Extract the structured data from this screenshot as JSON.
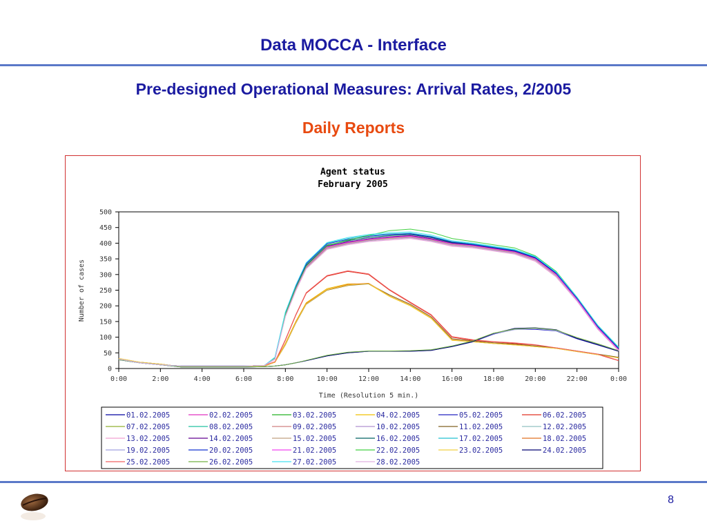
{
  "slide": {
    "title": "Data MOCCA - Interface",
    "subtitle": "Pre-designed Operational Measures: Arrival Rates, 2/2005",
    "section": "Daily Reports",
    "page_number": "8",
    "logo_icon": "coffee-bean-icon",
    "colors": {
      "title": "#1a1aa0",
      "section": "#e84a10",
      "rule": "#5a78c8",
      "frame": "#d03030"
    }
  },
  "chart_data": {
    "type": "line",
    "title": "Agent status",
    "subtitle": "February 2005",
    "xlabel": "Time (Resolution 5 min.)",
    "ylabel": "Number of cases",
    "xlim": [
      0,
      24
    ],
    "ylim": [
      0,
      500
    ],
    "x_ticks": [
      "0:00",
      "2:00",
      "4:00",
      "6:00",
      "8:00",
      "10:00",
      "12:00",
      "14:00",
      "16:00",
      "18:00",
      "20:00",
      "22:00",
      "0:00"
    ],
    "y_ticks": [
      "0",
      "50",
      "100",
      "150",
      "200",
      "250",
      "300",
      "350",
      "400",
      "450",
      "500"
    ],
    "grid": false,
    "legend_position": "bottom",
    "x": [
      "0:00",
      "1:00",
      "2:00",
      "3:00",
      "4:00",
      "5:00",
      "6:00",
      "7:00",
      "7:30",
      "8:00",
      "8:30",
      "9:00",
      "10:00",
      "11:00",
      "12:00",
      "13:00",
      "14:00",
      "15:00",
      "16:00",
      "17:00",
      "18:00",
      "19:00",
      "20:00",
      "21:00",
      "22:00",
      "23:00",
      "0:00"
    ],
    "series": [
      {
        "name": "01.02.2005",
        "color": "#0000a0",
        "values": [
          28,
          18,
          12,
          8,
          8,
          8,
          8,
          10,
          30,
          170,
          250,
          320,
          385,
          400,
          410,
          415,
          420,
          410,
          395,
          390,
          380,
          370,
          350,
          300,
          220,
          130,
          60
        ]
      },
      {
        "name": "02.02.2005",
        "color": "#e030c0",
        "values": [
          30,
          18,
          12,
          8,
          8,
          8,
          8,
          10,
          35,
          175,
          260,
          330,
          390,
          405,
          412,
          420,
          425,
          415,
          400,
          392,
          382,
          372,
          352,
          302,
          222,
          132,
          62
        ]
      },
      {
        "name": "03.02.2005",
        "color": "#20b020",
        "values": [
          30,
          18,
          12,
          8,
          8,
          8,
          8,
          10,
          32,
          170,
          255,
          325,
          388,
          402,
          412,
          418,
          422,
          412,
          398,
          392,
          382,
          372,
          350,
          300,
          220,
          130,
          60
        ]
      },
      {
        "name": "04.02.2005",
        "color": "#f0c000",
        "values": [
          32,
          20,
          14,
          6,
          6,
          6,
          6,
          8,
          20,
          80,
          150,
          210,
          255,
          270,
          270,
          230,
          200,
          160,
          90,
          85,
          80,
          75,
          70,
          65,
          55,
          45,
          35
        ]
      },
      {
        "name": "05.02.2005",
        "color": "#2020c0",
        "values": [
          28,
          18,
          12,
          5,
          5,
          5,
          5,
          6,
          8,
          12,
          18,
          25,
          40,
          50,
          55,
          55,
          55,
          58,
          70,
          85,
          110,
          125,
          125,
          120,
          95,
          75,
          55
        ]
      },
      {
        "name": "06.02.2005",
        "color": "#e03020",
        "values": [
          30,
          18,
          12,
          8,
          8,
          8,
          8,
          10,
          20,
          90,
          170,
          240,
          295,
          310,
          300,
          250,
          210,
          170,
          100,
          90,
          85,
          80,
          75,
          65,
          55,
          45,
          25
        ]
      },
      {
        "name": "07.02.2005",
        "color": "#90b030",
        "values": [
          30,
          18,
          12,
          8,
          8,
          8,
          8,
          10,
          32,
          168,
          252,
          322,
          382,
          398,
          408,
          415,
          420,
          412,
          395,
          388,
          378,
          368,
          345,
          295,
          218,
          128,
          58
        ]
      },
      {
        "name": "08.02.2005",
        "color": "#20c0a0",
        "values": [
          30,
          18,
          12,
          8,
          8,
          8,
          8,
          10,
          34,
          172,
          258,
          328,
          392,
          408,
          418,
          425,
          428,
          418,
          402,
          395,
          385,
          375,
          355,
          305,
          225,
          135,
          65
        ]
      },
      {
        "name": "09.02.2005",
        "color": "#d08080",
        "values": [
          30,
          18,
          12,
          8,
          8,
          8,
          8,
          10,
          33,
          171,
          254,
          324,
          386,
          400,
          410,
          416,
          420,
          410,
          396,
          390,
          380,
          370,
          348,
          298,
          220,
          130,
          60
        ]
      },
      {
        "name": "10.02.2005",
        "color": "#b090d0",
        "values": [
          30,
          18,
          12,
          8,
          8,
          8,
          8,
          10,
          31,
          169,
          252,
          322,
          384,
          398,
          408,
          414,
          418,
          408,
          394,
          388,
          378,
          368,
          346,
          296,
          218,
          128,
          58
        ]
      },
      {
        "name": "11.02.2005",
        "color": "#806020",
        "values": [
          30,
          20,
          14,
          6,
          6,
          6,
          6,
          8,
          20,
          75,
          145,
          205,
          250,
          265,
          270,
          235,
          205,
          165,
          95,
          88,
          82,
          78,
          72,
          66,
          56,
          46,
          36
        ]
      },
      {
        "name": "12.02.2005",
        "color": "#90c0c0",
        "values": [
          28,
          18,
          12,
          5,
          5,
          5,
          5,
          6,
          8,
          12,
          18,
          26,
          42,
          52,
          56,
          56,
          56,
          60,
          72,
          88,
          112,
          125,
          128,
          122,
          98,
          78,
          56
        ]
      },
      {
        "name": "13.02.2005",
        "color": "#f0a0d0",
        "values": [
          30,
          18,
          12,
          8,
          8,
          8,
          8,
          10,
          30,
          165,
          248,
          318,
          380,
          395,
          405,
          410,
          415,
          405,
          390,
          385,
          375,
          365,
          342,
          292,
          215,
          125,
          56
        ]
      },
      {
        "name": "14.02.2005",
        "color": "#600090",
        "values": [
          30,
          18,
          12,
          8,
          8,
          8,
          8,
          10,
          33,
          172,
          256,
          326,
          390,
          404,
          414,
          420,
          424,
          414,
          400,
          394,
          384,
          374,
          352,
          302,
          222,
          132,
          62
        ]
      },
      {
        "name": "15.02.2005",
        "color": "#c0a080",
        "values": [
          30,
          18,
          12,
          8,
          8,
          8,
          8,
          10,
          32,
          170,
          253,
          323,
          385,
          400,
          410,
          415,
          420,
          410,
          396,
          390,
          380,
          370,
          348,
          298,
          220,
          130,
          60
        ]
      },
      {
        "name": "16.02.2005",
        "color": "#006060",
        "values": [
          30,
          18,
          12,
          8,
          8,
          8,
          8,
          10,
          34,
          174,
          258,
          330,
          394,
          408,
          418,
          424,
          428,
          418,
          402,
          396,
          386,
          376,
          354,
          304,
          224,
          134,
          64
        ]
      },
      {
        "name": "17.02.2005",
        "color": "#20c0d0",
        "values": [
          30,
          18,
          12,
          8,
          8,
          8,
          8,
          10,
          36,
          178,
          264,
          336,
          400,
          415,
          425,
          430,
          432,
          422,
          405,
          398,
          388,
          378,
          356,
          306,
          226,
          136,
          66
        ]
      },
      {
        "name": "18.02.2005",
        "color": "#e07020",
        "values": [
          32,
          20,
          14,
          6,
          6,
          6,
          6,
          8,
          20,
          78,
          148,
          208,
          252,
          268,
          272,
          232,
          202,
          162,
          92,
          86,
          80,
          76,
          70,
          64,
          54,
          44,
          34
        ]
      },
      {
        "name": "19.02.2005",
        "color": "#a0a0e0",
        "values": [
          28,
          18,
          12,
          5,
          5,
          5,
          5,
          6,
          8,
          12,
          18,
          25,
          41,
          51,
          55,
          55,
          55,
          59,
          71,
          86,
          111,
          124,
          127,
          121,
          97,
          77,
          55
        ]
      },
      {
        "name": "20.02.2005",
        "color": "#1030d0",
        "values": [
          30,
          18,
          12,
          8,
          8,
          8,
          8,
          10,
          35,
          176,
          262,
          334,
          398,
          412,
          422,
          428,
          430,
          420,
          404,
          396,
          386,
          376,
          354,
          304,
          224,
          134,
          64
        ]
      },
      {
        "name": "21.02.2005",
        "color": "#f040f0",
        "values": [
          30,
          18,
          12,
          8,
          8,
          8,
          8,
          10,
          33,
          171,
          255,
          325,
          388,
          402,
          412,
          418,
          422,
          412,
          398,
          392,
          382,
          372,
          350,
          300,
          220,
          130,
          60
        ]
      },
      {
        "name": "22.02.2005",
        "color": "#40d040",
        "values": [
          30,
          18,
          12,
          8,
          8,
          8,
          8,
          10,
          34,
          173,
          257,
          327,
          392,
          410,
          425,
          440,
          445,
          435,
          415,
          405,
          395,
          385,
          360,
          310,
          228,
          138,
          68
        ]
      },
      {
        "name": "23.02.2005",
        "color": "#f0d040",
        "values": [
          32,
          20,
          14,
          6,
          6,
          6,
          6,
          8,
          20,
          76,
          146,
          206,
          251,
          266,
          271,
          231,
          201,
          161,
          91,
          85,
          80,
          75,
          70,
          64,
          54,
          44,
          34
        ]
      },
      {
        "name": "24.02.2005",
        "color": "#000070",
        "values": [
          28,
          18,
          12,
          5,
          5,
          5,
          5,
          6,
          8,
          12,
          18,
          25,
          40,
          50,
          55,
          55,
          55,
          58,
          70,
          86,
          112,
          128,
          130,
          124,
          96,
          76,
          55
        ]
      },
      {
        "name": "25.02.2005",
        "color": "#f06060",
        "values": [
          30,
          18,
          12,
          8,
          8,
          8,
          8,
          10,
          22,
          92,
          172,
          242,
          297,
          312,
          302,
          252,
          212,
          172,
          102,
          92,
          86,
          82,
          76,
          66,
          56,
          46,
          26
        ]
      },
      {
        "name": "26.02.2005",
        "color": "#70b040",
        "values": [
          28,
          18,
          12,
          5,
          5,
          5,
          5,
          6,
          8,
          12,
          18,
          26,
          42,
          52,
          56,
          56,
          57,
          60,
          72,
          88,
          113,
          126,
          129,
          123,
          99,
          79,
          57
        ]
      },
      {
        "name": "27.02.2005",
        "color": "#40e0f0",
        "values": [
          30,
          18,
          12,
          8,
          8,
          8,
          8,
          10,
          36,
          180,
          266,
          338,
          402,
          418,
          428,
          434,
          436,
          426,
          408,
          400,
          390,
          380,
          358,
          308,
          228,
          138,
          68
        ]
      },
      {
        "name": "28.02.2005",
        "color": "#e0b0e0",
        "values": [
          30,
          18,
          12,
          8,
          8,
          8,
          8,
          10,
          31,
          166,
          249,
          319,
          381,
          396,
          406,
          411,
          416,
          406,
          392,
          386,
          376,
          366,
          344,
          294,
          216,
          126,
          57
        ]
      }
    ]
  }
}
